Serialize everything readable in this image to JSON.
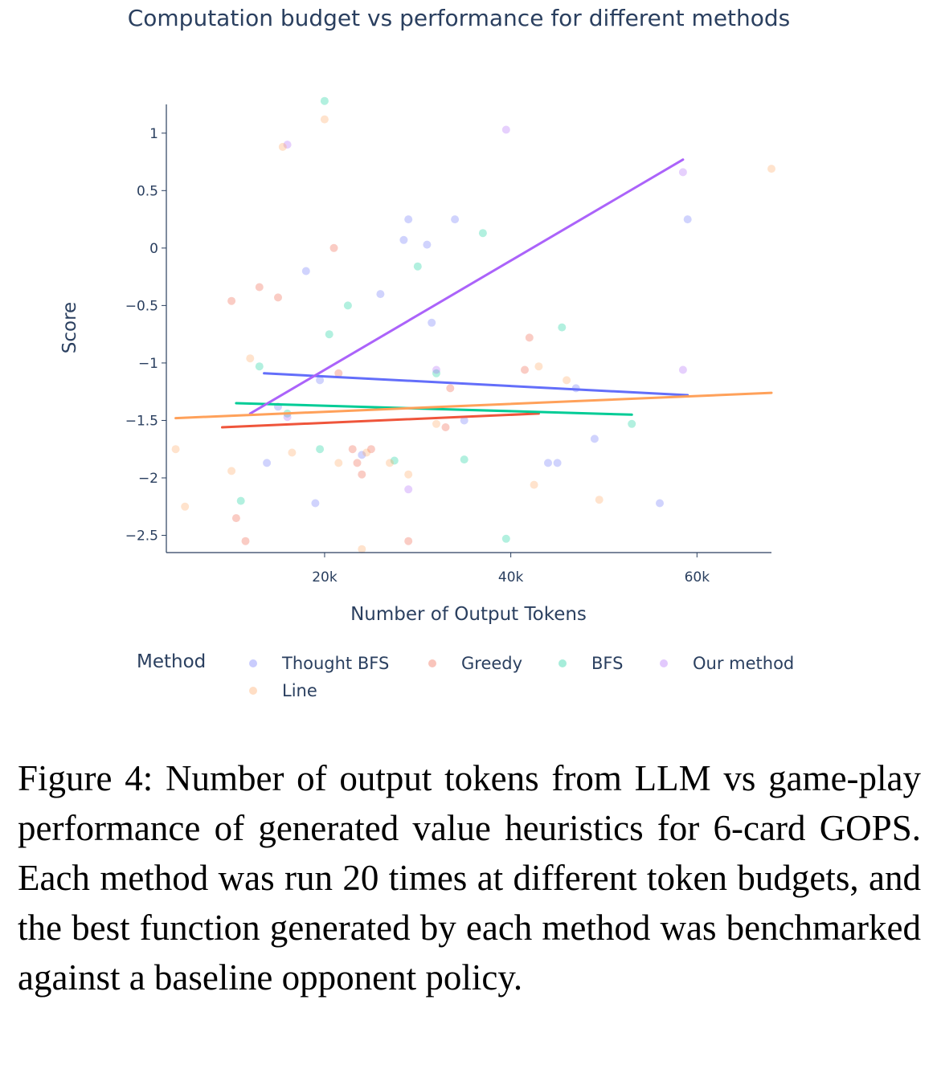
{
  "chart_data": {
    "type": "scatter",
    "title": "Computation budget vs performance for different methods",
    "xlabel": "Number of Output Tokens",
    "ylabel": "Score",
    "xlim": [
      3000,
      68000
    ],
    "ylim": [
      -2.65,
      1.25
    ],
    "xticks": [
      20000,
      40000,
      60000
    ],
    "xtick_labels": [
      "20k",
      "40k",
      "60k"
    ],
    "yticks": [
      1,
      0.5,
      0,
      -0.5,
      -1,
      -1.5,
      -2,
      -2.5
    ],
    "ytick_labels": [
      "1",
      "0.5",
      "0",
      "−0.5",
      "−1",
      "−1.5",
      "−2",
      "−2.5"
    ],
    "grid": false,
    "legend": {
      "title": "Method",
      "placement": "bottom"
    },
    "series": [
      {
        "name": "Thought BFS",
        "color": "#636efa",
        "points": [
          [
            18000,
            -0.2
          ],
          [
            19500,
            -1.15
          ],
          [
            19000,
            -2.22
          ],
          [
            13800,
            -1.87
          ],
          [
            28500,
            0.07
          ],
          [
            29000,
            0.25
          ],
          [
            31000,
            0.03
          ],
          [
            31500,
            -0.65
          ],
          [
            34000,
            0.25
          ],
          [
            35000,
            -1.5
          ],
          [
            24000,
            -1.8
          ],
          [
            26000,
            -0.4
          ],
          [
            44000,
            -1.87
          ],
          [
            45000,
            -1.87
          ],
          [
            47000,
            -1.22
          ],
          [
            49000,
            -1.66
          ],
          [
            56000,
            -2.22
          ],
          [
            59000,
            0.25
          ],
          [
            15000,
            -1.38
          ]
        ],
        "trend": [
          [
            13500,
            -1.09
          ],
          [
            59000,
            -1.28
          ]
        ]
      },
      {
        "name": "Greedy",
        "color": "#ef553b",
        "points": [
          [
            10000,
            -0.46
          ],
          [
            10500,
            -2.35
          ],
          [
            11500,
            -2.55
          ],
          [
            13000,
            -0.34
          ],
          [
            15000,
            -0.43
          ],
          [
            21000,
            0.0
          ],
          [
            21500,
            -1.09
          ],
          [
            23000,
            -1.75
          ],
          [
            24000,
            -1.97
          ],
          [
            25000,
            -1.75
          ],
          [
            23500,
            -1.87
          ],
          [
            29000,
            -2.55
          ],
          [
            33000,
            -1.56
          ],
          [
            33500,
            -1.22
          ],
          [
            41500,
            -1.06
          ],
          [
            42000,
            -0.78
          ]
        ],
        "trend": [
          [
            9000,
            -1.56
          ],
          [
            43000,
            -1.44
          ]
        ]
      },
      {
        "name": "BFS",
        "color": "#00cc96",
        "points": [
          [
            20000,
            1.28
          ],
          [
            11000,
            -2.2
          ],
          [
            13000,
            -1.03
          ],
          [
            19500,
            -1.75
          ],
          [
            20500,
            -0.75
          ],
          [
            22500,
            -0.5
          ],
          [
            27500,
            -1.85
          ],
          [
            30000,
            -0.16
          ],
          [
            32000,
            -1.09
          ],
          [
            35000,
            -1.84
          ],
          [
            37000,
            0.13
          ],
          [
            39500,
            -2.53
          ],
          [
            45500,
            -0.69
          ],
          [
            53000,
            -1.53
          ],
          [
            16000,
            -1.44
          ]
        ],
        "trend": [
          [
            10500,
            -1.35
          ],
          [
            53000,
            -1.45
          ]
        ]
      },
      {
        "name": "Our method",
        "color": "#ab63fa",
        "points": [
          [
            16000,
            0.9
          ],
          [
            16000,
            -1.47
          ],
          [
            29000,
            -2.1
          ],
          [
            39500,
            1.03
          ],
          [
            58500,
            0.66
          ],
          [
            58500,
            -1.06
          ],
          [
            32000,
            -1.06
          ]
        ],
        "trend": [
          [
            12000,
            -1.44
          ],
          [
            58500,
            0.77
          ]
        ]
      },
      {
        "name": "Line",
        "color": "#ffa15a",
        "points": [
          [
            4000,
            -1.75
          ],
          [
            5000,
            -2.25
          ],
          [
            10000,
            -1.94
          ],
          [
            12000,
            -0.96
          ],
          [
            15500,
            0.88
          ],
          [
            16500,
            -1.78
          ],
          [
            20000,
            1.12
          ],
          [
            21500,
            -1.87
          ],
          [
            24500,
            -1.78
          ],
          [
            27000,
            -1.87
          ],
          [
            29000,
            -1.97
          ],
          [
            32000,
            -1.53
          ],
          [
            42500,
            -2.06
          ],
          [
            43000,
            -1.03
          ],
          [
            46000,
            -1.15
          ],
          [
            49500,
            -2.19
          ],
          [
            68000,
            0.69
          ],
          [
            24000,
            -2.62
          ]
        ],
        "trend": [
          [
            4000,
            -1.48
          ],
          [
            68000,
            -1.26
          ]
        ]
      }
    ]
  },
  "caption": "Figure 4: Number of output tokens from LLM vs game-play performance of generated value heuris­tics for 6-card GOPS. Each method was run 20 times at different token budgets, and the best func­tion generated by each method was benchmarked against a baseline opponent policy."
}
